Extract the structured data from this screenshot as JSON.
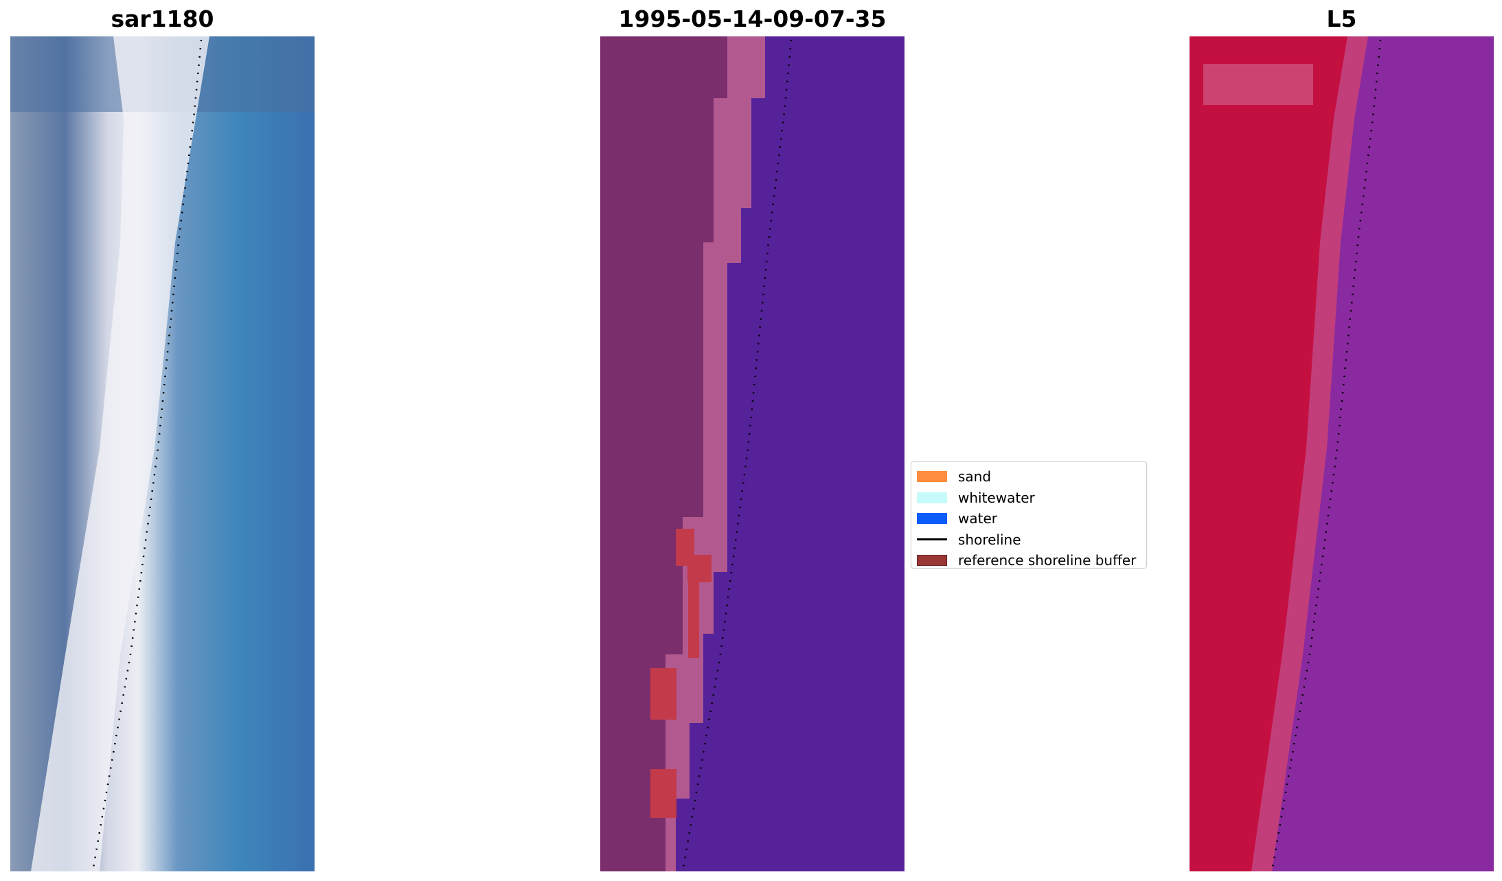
{
  "panels": [
    {
      "title": "sar1180"
    },
    {
      "title": "1995-05-14-09-07-35"
    },
    {
      "title": "L5"
    }
  ],
  "legend": {
    "items": [
      {
        "label": "sand",
        "kind": "patch",
        "color": "#ff8c3f"
      },
      {
        "label": "whitewater",
        "kind": "patch",
        "color": "#c7fbfb"
      },
      {
        "label": "water",
        "kind": "patch",
        "color": "#0a5cfd"
      },
      {
        "label": "shoreline",
        "kind": "line",
        "color": "#000000"
      },
      {
        "label": "reference shoreline buffer",
        "kind": "patch",
        "color": "#993636"
      }
    ]
  },
  "colors": {
    "rgb_water": "#3b83b8",
    "rgb_beach": "#e8e8f0",
    "rgb_land": "#5d7fa6",
    "class_water": "#55229a",
    "class_land": "#7a2e6c",
    "class_transition": "#b25a90",
    "buffer_red": "#c33a4b",
    "index_land": "#c41040",
    "index_water": "#8a2aa0",
    "index_transition": "#c23e7a"
  }
}
